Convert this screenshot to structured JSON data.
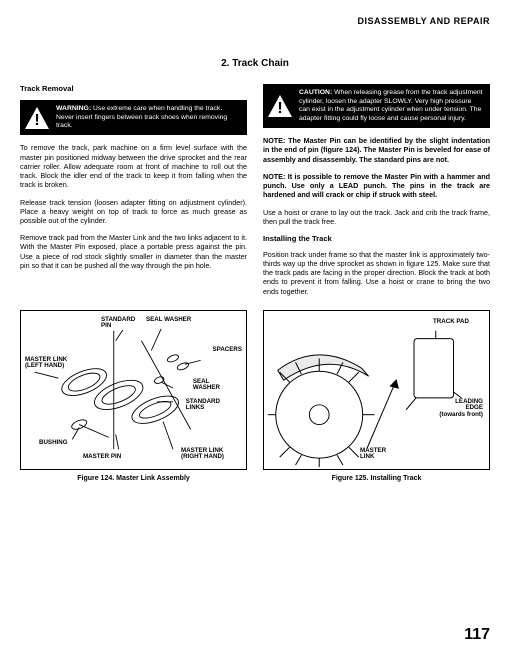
{
  "header": {
    "title": "DISASSEMBLY AND REPAIR"
  },
  "section": {
    "heading": "2.   Track Chain"
  },
  "left": {
    "subhead": "Track Removal",
    "warning": "WARNING: Use extreme care when handling the track. Never insert fingers between track shoes when removing track.",
    "p1": "To remove the track, park machine on a firm level surface with the master pin positioned midway between the drive sprocket and the rear carrier roller. Allow adequate room at front of machine to roll out the track. Block the idler end of the track to keep it from falling when the track is broken.",
    "p2": "Release track tension (loosen adapter fitting on adjustment cylinder). Place a heavy weight on top of track to force as much grease as possible out of the cylinder.",
    "p3": "Remove track pad from the Master Link and the two links adjacent to it. With the Master Pin exposed, place a portable press against the pin. Use a piece of rod stock slightly smaller in diameter than the master pin so that it can be pushed all the way through the pin hole."
  },
  "right": {
    "caution": "CAUTION: When releasing grease from the track adjustment cylinder, loosen the adapter SLOWLY. Very high pressure can exist in the adjustment cylinder when under tension. The adapter fitting could fly loose and cause personal injury.",
    "note1": "NOTE: The Master Pin can be identified by the slight indentation in the end of pin (figure 124). The Master Pin is beveled for ease of assembly and disassembly. The standard pins are not.",
    "note2": "NOTE: It is possible to remove the Master Pin with a hammer and punch. Use only a LEAD punch. The pins in the track are hardened and will crack or chip if struck with steel.",
    "p4": "Use a hoist or crane to lay out the track. Jack and crib the track frame, then pull the track free.",
    "subhead2": "Installing the Track",
    "p5": "Position track under frame so that the master link is approximately two-thirds way up the drive sprocket as shown in figure 125. Make sure that the track pads are facing in the proper direction. Block the track at both ends to prevent it from falling. Use a hoist or crane to bring the two ends together."
  },
  "figures": {
    "f124": {
      "caption": "Figure 124. Master Link Assembly",
      "labels": {
        "standard_pin": "STANDARD\nPIN",
        "seal_washer_top": "SEAL WASHER",
        "spacers": "SPACERS",
        "master_link_left": "MASTER LINK\n(LEFT HAND)",
        "seal_washer_mid": "SEAL\nWASHER",
        "standard_links": "STANDARD\nLINKS",
        "bushing": "BUSHING",
        "master_pin": "MASTER PIN",
        "master_link_right": "MASTER LINK\n(RIGHT HAND)"
      }
    },
    "f125": {
      "caption": "Figure 125. Installing Track",
      "labels": {
        "track_pad": "TRACK PAD",
        "leading_edge": "LEADING\nEDGE\n(towards front)",
        "master_link": "MASTER\nLINK"
      }
    }
  },
  "page": "117"
}
